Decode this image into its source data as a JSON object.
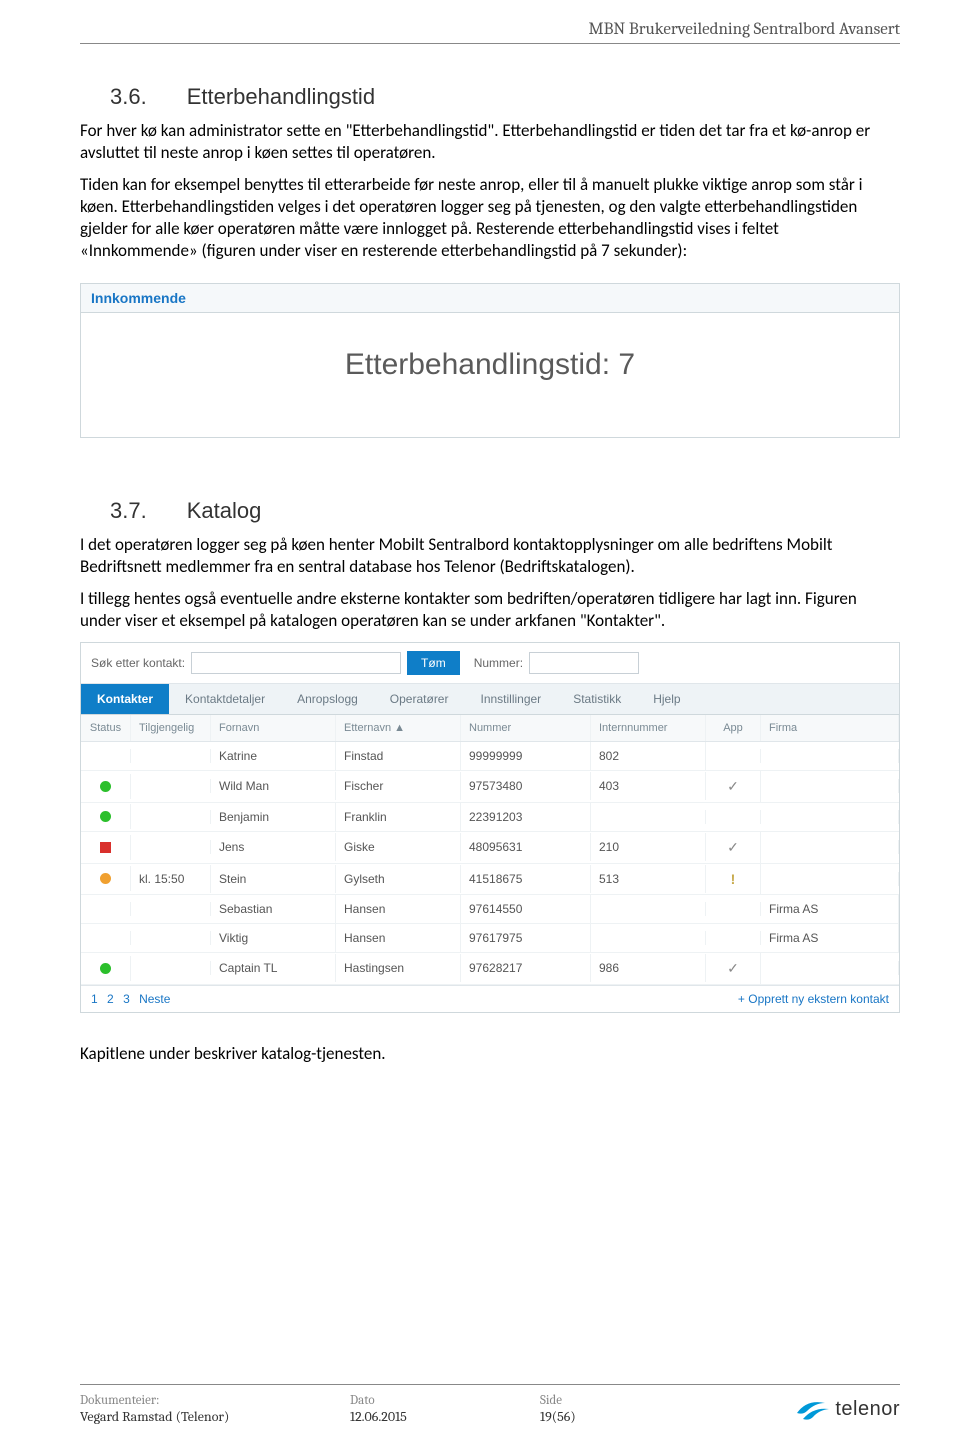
{
  "header": {
    "title": "MBN Brukerveiledning Sentralbord Avansert"
  },
  "section1": {
    "num": "3.6.",
    "title": "Etterbehandlingstid",
    "p1": "For hver kø kan administrator sette en \"Etterbehandlingstid\". Etterbehandlingstid er tiden det tar fra et kø-anrop er avsluttet til neste anrop i køen settes til operatøren.",
    "p2": "Tiden kan for eksempel benyttes til etterarbeide før neste anrop, eller til å manuelt plukke viktige anrop som står i køen. Etterbehandlingstiden velges i det operatøren logger seg på tjenesten, og den valgte etterbehandlingstiden gjelder for alle køer operatøren måtte være innlogget på. Resterende etterbehandlingstid vises i feltet «Innkommende» (figuren under viser en resterende etterbehandlingstid på 7 sekunder):"
  },
  "panel1": {
    "header": "Innkommende",
    "body": "Etterbehandlingstid: 7"
  },
  "section2": {
    "num": "3.7.",
    "title": "Katalog",
    "p1": "I det operatøren logger seg på køen henter Mobilt Sentralbord kontaktopplysninger om alle bedriftens Mobilt Bedriftsnett medlemmer fra en sentral database hos Telenor (Bedriftskatalogen).",
    "p2": "I tillegg hentes også eventuelle andre eksterne kontakter som bedriften/operatøren tidligere har lagt inn. Figuren under viser et eksempel på katalogen operatøren kan se under arkfanen \"Kontakter\"."
  },
  "panel2": {
    "search": {
      "label1": "Søk etter kontakt:",
      "tom_btn": "Tøm",
      "label2": "Nummer:"
    },
    "tabs": [
      "Kontakter",
      "Kontaktdetaljer",
      "Anropslogg",
      "Operatører",
      "Innstillinger",
      "Statistikk",
      "Hjelp"
    ],
    "active_tab": 0,
    "columns": [
      "Status",
      "Tilgjengelig",
      "Fornavn",
      "Etternavn ▲",
      "Nummer",
      "Internnummer",
      "App",
      "Firma"
    ],
    "rows": [
      {
        "status_color": "",
        "tilg": "",
        "fornavn": "Katrine",
        "etternavn": "Finstad",
        "nummer": "99999999",
        "intern": "802",
        "app": "",
        "firma": ""
      },
      {
        "status_color": "#2bbf2b",
        "shape": "dot",
        "tilg": "",
        "fornavn": "Wild Man",
        "etternavn": "Fischer",
        "nummer": "97573480",
        "intern": "403",
        "app": "✓",
        "firma": ""
      },
      {
        "status_color": "#2bbf2b",
        "shape": "dot",
        "tilg": "",
        "fornavn": "Benjamin",
        "etternavn": "Franklin",
        "nummer": "22391203",
        "intern": "",
        "app": "",
        "firma": ""
      },
      {
        "status_color": "#d9302c",
        "shape": "sq",
        "tilg": "",
        "fornavn": "Jens",
        "etternavn": "Giske",
        "nummer": "48095631",
        "intern": "210",
        "app": "✓",
        "firma": ""
      },
      {
        "status_color": "#f0a030",
        "shape": "dot",
        "tilg": "kl. 15:50",
        "fornavn": "Stein",
        "etternavn": "Gylseth",
        "nummer": "41518675",
        "intern": "513",
        "app": "!",
        "firma": ""
      },
      {
        "status_color": "",
        "tilg": "",
        "fornavn": "Sebastian",
        "etternavn": "Hansen",
        "nummer": "97614550",
        "intern": "",
        "app": "",
        "firma": "Firma AS"
      },
      {
        "status_color": "",
        "tilg": "",
        "fornavn": "Viktig",
        "etternavn": "Hansen",
        "nummer": "97617975",
        "intern": "",
        "app": "",
        "firma": "Firma AS"
      },
      {
        "status_color": "#2bbf2b",
        "shape": "dot",
        "tilg": "",
        "fornavn": "Captain TL",
        "etternavn": "Hastingsen",
        "nummer": "97628217",
        "intern": "986",
        "app": "✓",
        "firma": ""
      }
    ],
    "pager": {
      "pages": [
        "1",
        "2",
        "3"
      ],
      "next": "Neste",
      "create": "+ Opprett ny ekstern kontakt"
    }
  },
  "closing": "Kapitlene under beskriver katalog-tjenesten.",
  "footer": {
    "col1_label": "Dokumenteier:",
    "col1_val": "Vegard Ramstad (Telenor)",
    "col2_label": "Dato",
    "col2_val": "12.06.2015",
    "col3_label": "Side",
    "col3_val": "19(56)",
    "logo_text": "telenor",
    "logo_color": "#0099d8"
  }
}
